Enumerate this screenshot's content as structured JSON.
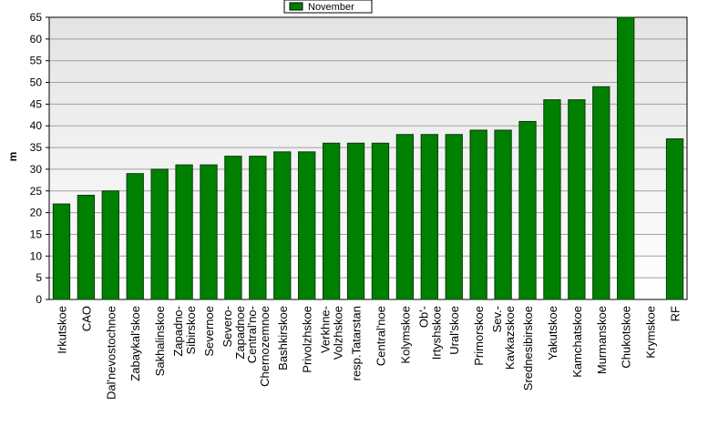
{
  "chart_data": {
    "type": "bar",
    "y_label": "m",
    "categories": [
      "Irkutskoe",
      "CAO",
      "Dal'nevostochnoe",
      "Zabaykal'skoe",
      "Sakhalinskoe",
      "Zapadno-\nSibirskoe",
      "Severnoe",
      "Severo-\nZapadnoe",
      "Central'no-\nChernozemnoe",
      "Bashkirskoe",
      "Privolzhskoe",
      "Verkhne-\nVolzhskoe",
      "resp.Tatarstan",
      "Central'noe",
      "Kolymskoe",
      "Ob'-\nIrtyshskoe",
      "Ural'skoe",
      "Primorskoe",
      "Sev.-\nKavkazskoe",
      "Srednesibirskoe",
      "Yakutskoe",
      "Kamchatskoe",
      "Murmanskoe",
      "Chukotskoe",
      "Krymskoe",
      "RF"
    ],
    "series": [
      {
        "name": "November",
        "color": "#008000",
        "values": [
          22,
          24,
          25,
          29,
          30,
          31,
          31,
          33,
          33,
          34,
          34,
          36,
          36,
          36,
          38,
          38,
          38,
          39,
          39,
          41,
          46,
          46,
          49,
          65,
          null,
          37
        ]
      }
    ],
    "ylim": [
      0,
      65
    ],
    "yticks": [
      0,
      5,
      10,
      15,
      20,
      25,
      30,
      35,
      40,
      45,
      50,
      55,
      60,
      65
    ],
    "grid": true,
    "legend": "top"
  }
}
